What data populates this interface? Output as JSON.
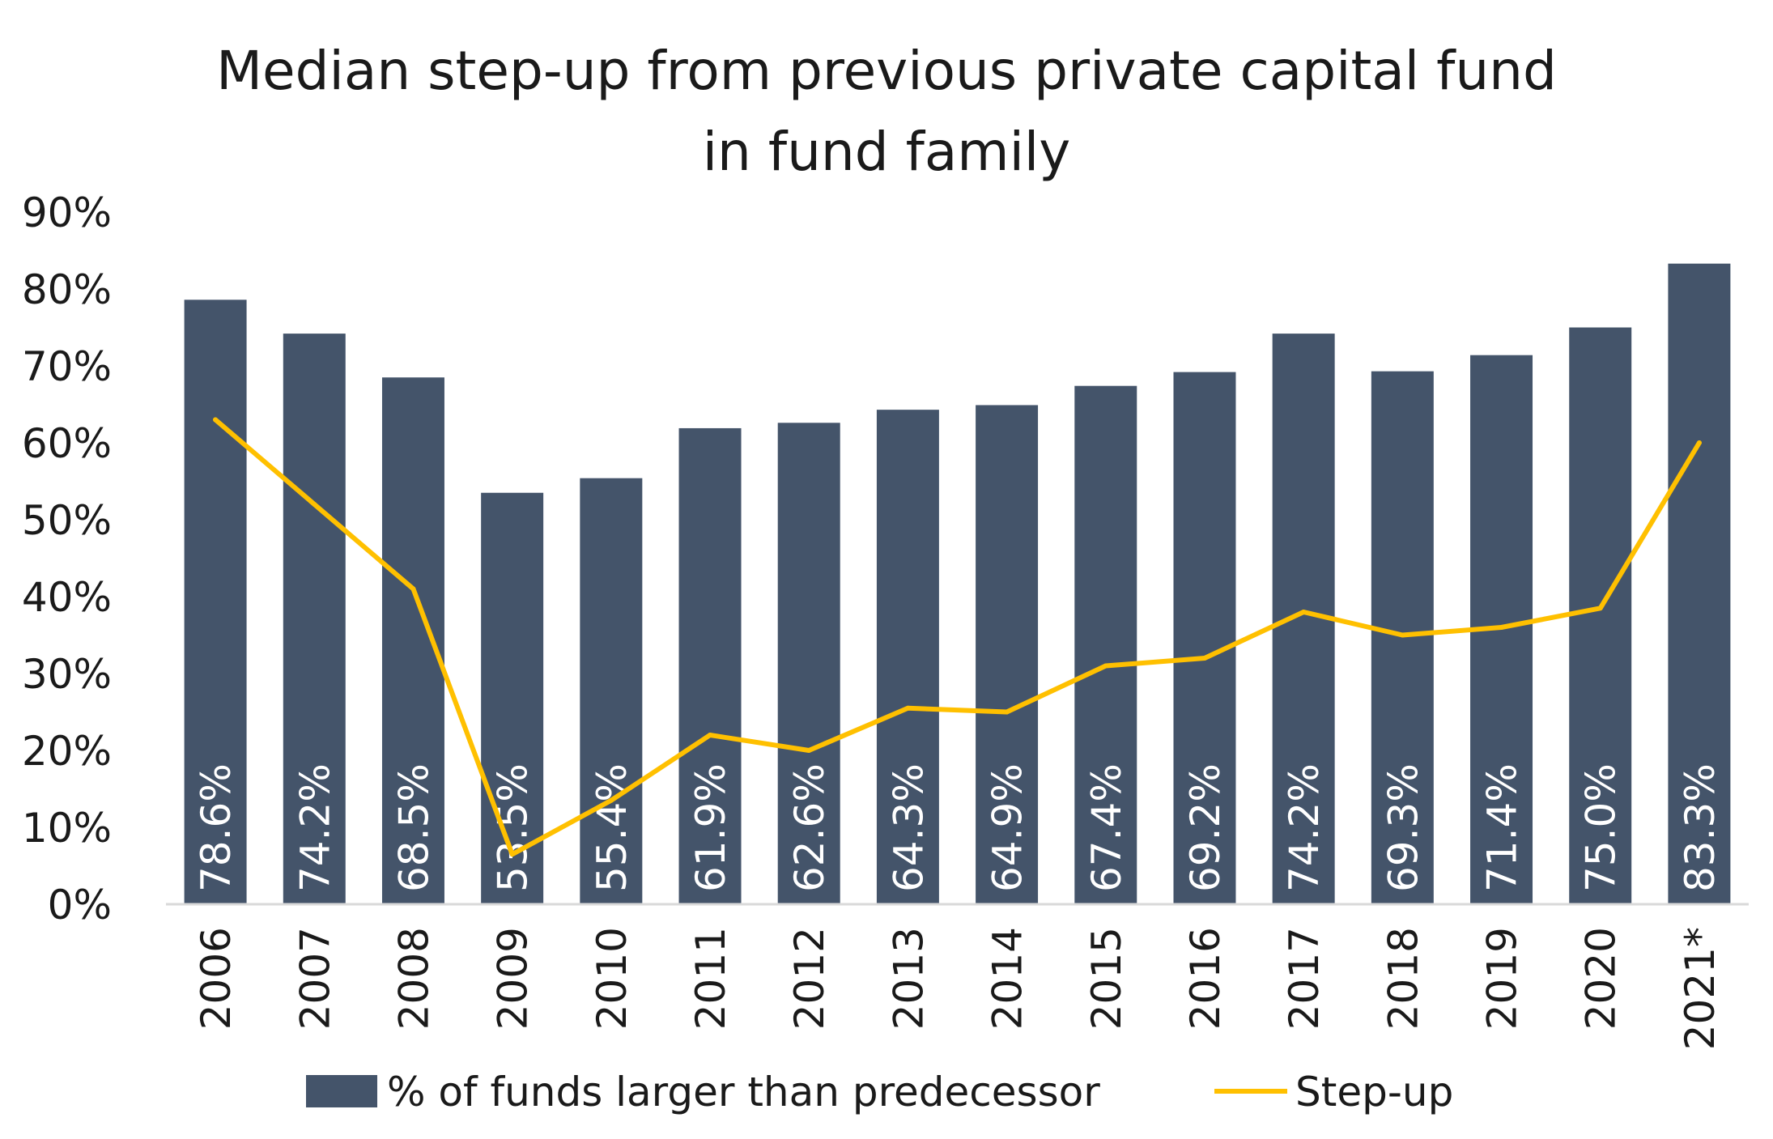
{
  "chart_data": {
    "type": "bar",
    "title_lines": [
      "Median step-up from previous private capital fund",
      "in fund family"
    ],
    "categories": [
      "2006",
      "2007",
      "2008",
      "2009",
      "2010",
      "2011",
      "2012",
      "2013",
      "2014",
      "2015",
      "2016",
      "2017",
      "2018",
      "2019",
      "2020",
      "2021*"
    ],
    "series": [
      {
        "name": "% of funds larger than predecessor",
        "type": "bar",
        "color": "#44546a",
        "values": [
          78.6,
          74.2,
          68.5,
          53.5,
          55.4,
          61.9,
          62.6,
          64.3,
          64.9,
          67.4,
          69.2,
          74.2,
          69.3,
          71.4,
          75.0,
          83.3
        ],
        "labels": [
          "78.6%",
          "74.2%",
          "68.5%",
          "53.5%",
          "55.4%",
          "61.9%",
          "62.6%",
          "64.3%",
          "64.9%",
          "67.4%",
          "69.2%",
          "74.2%",
          "69.3%",
          "71.4%",
          "75.0%",
          "83.3%"
        ]
      },
      {
        "name": "Step-up",
        "type": "line",
        "color": "#ffc000",
        "values": [
          63.0,
          52.0,
          41.0,
          6.5,
          13.5,
          22.0,
          20.0,
          25.5,
          25.0,
          31.0,
          32.0,
          38.0,
          35.0,
          36.0,
          38.5,
          60.0
        ]
      }
    ],
    "yticks": [
      "0%",
      "10%",
      "20%",
      "30%",
      "40%",
      "50%",
      "60%",
      "70%",
      "80%",
      "90%"
    ],
    "ylim": [
      0,
      90
    ],
    "grid": false,
    "legend_position": "bottom"
  }
}
